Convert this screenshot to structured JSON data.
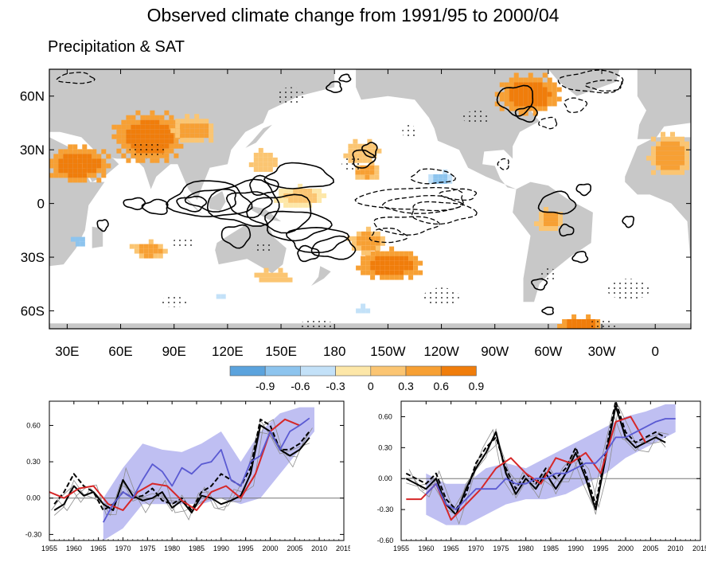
{
  "figure": {
    "title": "Observed climate change from 1991/95 to 2000/04",
    "subtitle": "Precipitation & SAT"
  },
  "colors": {
    "land": "#c8c8c8",
    "ocean": "#ffffff",
    "contour": "#000000",
    "red_line": "#d62728",
    "blue_line": "#5a5ad2",
    "blue_band": "#b4b4f0",
    "gray_lines": "#8c8c8c",
    "colorbar": [
      "#5ba3dd",
      "#8dc4ee",
      "#c3e1f8",
      "#fde7a8",
      "#fbc572",
      "#f7a034",
      "#f07d0b"
    ]
  },
  "chart_data": [
    {
      "type": "heatmap",
      "name": "map",
      "title": "Precipitation & SAT",
      "x_tick_labels": [
        "30E",
        "60E",
        "90E",
        "120E",
        "150E",
        "180",
        "150W",
        "120W",
        "90W",
        "60W",
        "30W",
        "0"
      ],
      "y_tick_labels": [
        "60N",
        "30N",
        "0",
        "30S",
        "60S"
      ],
      "x_ticks_lon": [
        30,
        60,
        90,
        120,
        150,
        180,
        210,
        240,
        270,
        300,
        330,
        360
      ],
      "y_ticks_lat": [
        60,
        30,
        0,
        -30,
        -60
      ],
      "lon_range": [
        20,
        380
      ],
      "lat_range": [
        -70,
        75
      ],
      "colorbar": {
        "labels": [
          "-0.9",
          "-0.6",
          "-0.3",
          "0",
          "0.3",
          "0.6",
          "0.9"
        ],
        "levels": [
          -0.9,
          -0.6,
          -0.3,
          0,
          0.3,
          0.6,
          0.9
        ]
      },
      "anomaly_regions": [
        {
          "lon": 35,
          "lat": 23,
          "rx": 18,
          "ry": 10,
          "value": 0.9
        },
        {
          "lon": 75,
          "lat": 38,
          "rx": 20,
          "ry": 14,
          "value": 1.0
        },
        {
          "lon": 100,
          "lat": 42,
          "rx": 12,
          "ry": 8,
          "value": 0.6
        },
        {
          "lon": 140,
          "lat": 25,
          "rx": 8,
          "ry": 6,
          "value": 0.5
        },
        {
          "lon": 195,
          "lat": 30,
          "rx": 10,
          "ry": 6,
          "value": 0.5
        },
        {
          "lon": 197,
          "lat": 19,
          "rx": 8,
          "ry": 5,
          "value": 0.6
        },
        {
          "lon": 210,
          "lat": -33,
          "rx": 18,
          "ry": 9,
          "value": 1.0
        },
        {
          "lon": 197,
          "lat": -20,
          "rx": 10,
          "ry": 7,
          "value": 0.7
        },
        {
          "lon": 160,
          "lat": 5,
          "rx": 14,
          "ry": 6,
          "value": 0.3
        },
        {
          "lon": 75,
          "lat": -25,
          "rx": 10,
          "ry": 5,
          "value": 0.6
        },
        {
          "lon": 145,
          "lat": -40,
          "rx": 10,
          "ry": 4,
          "value": 0.5
        },
        {
          "lon": 288,
          "lat": 62,
          "rx": 18,
          "ry": 11,
          "value": 1.0
        },
        {
          "lon": 367,
          "lat": 28,
          "rx": 12,
          "ry": 12,
          "value": 0.8
        },
        {
          "lon": 317,
          "lat": -66,
          "rx": 12,
          "ry": 4,
          "value": 1.0
        },
        {
          "lon": 300,
          "lat": -8,
          "rx": 8,
          "ry": 6,
          "value": 0.6
        },
        {
          "lon": 238,
          "lat": 15,
          "rx": 8,
          "ry": 4,
          "value": -0.4
        },
        {
          "lon": 35,
          "lat": -20,
          "rx": 3,
          "ry": 4,
          "value": -0.6
        },
        {
          "lon": 115,
          "lat": -50,
          "rx": 4,
          "ry": 2,
          "value": -0.3
        },
        {
          "lon": 195,
          "lat": -58,
          "rx": 3,
          "ry": 2,
          "value": -0.3
        }
      ]
    },
    {
      "type": "line",
      "name": "left_timeseries",
      "xlim": [
        1955,
        2015
      ],
      "ylim": [
        -0.35,
        0.8
      ],
      "x_ticks": [
        1955,
        1960,
        1965,
        1970,
        1975,
        1980,
        1985,
        1990,
        1995,
        2000,
        2005,
        2010,
        2015
      ],
      "y_ticks": [
        -0.3,
        0,
        0.3,
        0.6
      ],
      "y_tick_labels": [
        "-0.30",
        "0.00",
        "0.30",
        "0.60"
      ],
      "series": [
        {
          "name": "observed black solid",
          "style": "black",
          "x": [
            1956,
            1958,
            1960,
            1962,
            1964,
            1966,
            1968,
            1970,
            1972,
            1974,
            1976,
            1978,
            1980,
            1982,
            1984,
            1986,
            1988,
            1990,
            1992,
            1994,
            1996,
            1998,
            2000,
            2002,
            2004,
            2006,
            2008
          ],
          "y": [
            -0.1,
            -0.05,
            0.1,
            0.02,
            0.05,
            -0.05,
            -0.1,
            0.15,
            0.02,
            -0.02,
            0.0,
            0.05,
            -0.08,
            -0.02,
            -0.12,
            0.02,
            0.0,
            -0.05,
            -0.02,
            0.02,
            0.2,
            0.6,
            0.55,
            0.4,
            0.35,
            0.4,
            0.5
          ]
        },
        {
          "name": "observed black dashed",
          "style": "black-dash",
          "x": [
            1956,
            1958,
            1960,
            1962,
            1964,
            1966,
            1968,
            1970,
            1972,
            1974,
            1976,
            1978,
            1980,
            1982,
            1984,
            1986,
            1988,
            1990,
            1992,
            1994,
            1996,
            1998,
            2000,
            2002,
            2004,
            2006,
            2008
          ],
          "y": [
            -0.05,
            0.05,
            0.2,
            0.1,
            0.05,
            -0.1,
            -0.05,
            0.05,
            0.0,
            0.02,
            0.08,
            -0.02,
            -0.05,
            0.0,
            -0.1,
            0.05,
            0.1,
            0.2,
            0.15,
            0.1,
            0.25,
            0.65,
            0.6,
            0.4,
            0.4,
            0.45,
            0.55
          ]
        },
        {
          "name": "red",
          "style": "red",
          "x": [
            1955,
            1958,
            1961,
            1964,
            1967,
            1970,
            1973,
            1976,
            1979,
            1982,
            1985,
            1988,
            1991,
            1994,
            1997,
            2000,
            2003,
            2006
          ],
          "y": [
            0.05,
            0.0,
            0.08,
            0.1,
            -0.05,
            -0.1,
            0.05,
            0.12,
            0.1,
            -0.02,
            -0.1,
            0.05,
            0.1,
            0.0,
            0.2,
            0.55,
            0.65,
            0.6
          ]
        },
        {
          "name": "model mean blue",
          "style": "blue",
          "x": [
            1966,
            1968,
            1970,
            1972,
            1974,
            1976,
            1978,
            1980,
            1982,
            1984,
            1986,
            1988,
            1990,
            1992,
            1994,
            1996,
            1998,
            2000,
            2002,
            2004,
            2006,
            2008
          ],
          "y": [
            -0.2,
            -0.05,
            0.05,
            0.0,
            0.15,
            0.28,
            0.22,
            0.1,
            0.25,
            0.2,
            0.28,
            0.3,
            0.4,
            0.15,
            0.1,
            0.3,
            0.35,
            0.55,
            0.4,
            0.55,
            0.6,
            0.66
          ]
        }
      ],
      "band": {
        "x": [
          1966,
          1970,
          1974,
          1978,
          1982,
          1986,
          1990,
          1994,
          1998,
          2002,
          2006,
          2009
        ],
        "upper": [
          0.0,
          0.25,
          0.45,
          0.4,
          0.38,
          0.45,
          0.55,
          0.3,
          0.55,
          0.7,
          0.75,
          0.75
        ],
        "lower": [
          -0.35,
          -0.25,
          -0.05,
          -0.05,
          -0.05,
          -0.05,
          0.0,
          -0.05,
          0.0,
          0.2,
          0.4,
          0.55
        ]
      }
    },
    {
      "type": "line",
      "name": "right_timeseries",
      "xlim": [
        1955,
        2015
      ],
      "ylim": [
        -0.6,
        0.75
      ],
      "x_ticks": [
        1955,
        1960,
        1965,
        1970,
        1975,
        1980,
        1985,
        1990,
        1995,
        2000,
        2005,
        2010,
        2015
      ],
      "y_ticks": [
        -0.6,
        -0.3,
        0,
        0.3,
        0.6
      ],
      "y_tick_labels": [
        "-0.60",
        "-0.30",
        "0.00",
        "0.30",
        "0.60"
      ],
      "series": [
        {
          "name": "observed black solid",
          "style": "black",
          "x": [
            1956,
            1958,
            1960,
            1962,
            1964,
            1966,
            1968,
            1970,
            1972,
            1974,
            1976,
            1978,
            1980,
            1982,
            1984,
            1986,
            1988,
            1990,
            1992,
            1994,
            1996,
            1998,
            2000,
            2002,
            2004,
            2006,
            2008
          ],
          "y": [
            0.0,
            -0.05,
            -0.1,
            0.0,
            -0.25,
            -0.35,
            -0.1,
            0.1,
            0.25,
            0.45,
            0.05,
            -0.15,
            0.0,
            -0.1,
            0.05,
            -0.1,
            0.05,
            0.25,
            0.0,
            -0.3,
            0.2,
            0.7,
            0.4,
            0.3,
            0.35,
            0.4,
            0.35
          ]
        },
        {
          "name": "observed black dashed",
          "style": "black-dash",
          "x": [
            1956,
            1958,
            1960,
            1962,
            1964,
            1966,
            1968,
            1970,
            1972,
            1974,
            1976,
            1978,
            1980,
            1982,
            1984,
            1986,
            1988,
            1990,
            1992,
            1994,
            1996,
            1998,
            2000,
            2002,
            2004,
            2006,
            2008
          ],
          "y": [
            0.05,
            0.0,
            -0.05,
            0.05,
            -0.2,
            -0.3,
            -0.15,
            0.15,
            0.3,
            0.4,
            0.1,
            -0.1,
            0.05,
            -0.05,
            0.1,
            0.0,
            0.1,
            0.3,
            0.05,
            -0.25,
            0.25,
            0.75,
            0.45,
            0.35,
            0.4,
            0.45,
            0.4
          ]
        },
        {
          "name": "red",
          "style": "red",
          "x": [
            1956,
            1959,
            1962,
            1965,
            1968,
            1971,
            1974,
            1977,
            1980,
            1983,
            1986,
            1989,
            1992,
            1995,
            1998,
            2001,
            2004
          ],
          "y": [
            -0.2,
            -0.2,
            -0.05,
            -0.4,
            -0.25,
            -0.1,
            0.1,
            0.2,
            0.05,
            -0.05,
            0.2,
            0.15,
            0.25,
            0.05,
            0.55,
            0.6,
            0.35
          ]
        },
        {
          "name": "model mean blue",
          "style": "blue",
          "x": [
            1960,
            1962,
            1964,
            1966,
            1968,
            1970,
            1972,
            1974,
            1976,
            1978,
            1980,
            1982,
            1984,
            1986,
            1988,
            1990,
            1992,
            1994,
            1996,
            1998,
            2000,
            2002,
            2004,
            2006,
            2008,
            2010
          ],
          "y": [
            -0.15,
            -0.05,
            -0.25,
            -0.3,
            -0.2,
            -0.1,
            -0.1,
            -0.1,
            0.0,
            -0.05,
            -0.05,
            0.0,
            0.0,
            0.05,
            0.05,
            0.1,
            0.15,
            0.15,
            0.25,
            0.4,
            0.4,
            0.45,
            0.5,
            0.55,
            0.58,
            0.58
          ]
        }
      ],
      "band": {
        "x": [
          1960,
          1964,
          1968,
          1972,
          1976,
          1980,
          1984,
          1988,
          1992,
          1996,
          2000,
          2004,
          2008,
          2010
        ],
        "upper": [
          0.05,
          -0.05,
          -0.05,
          0.1,
          0.15,
          0.1,
          0.2,
          0.3,
          0.4,
          0.5,
          0.6,
          0.65,
          0.72,
          0.72
        ],
        "lower": [
          -0.35,
          -0.45,
          -0.45,
          -0.35,
          -0.25,
          -0.2,
          -0.2,
          -0.15,
          -0.05,
          0.05,
          0.2,
          0.3,
          0.4,
          0.45
        ]
      }
    }
  ]
}
